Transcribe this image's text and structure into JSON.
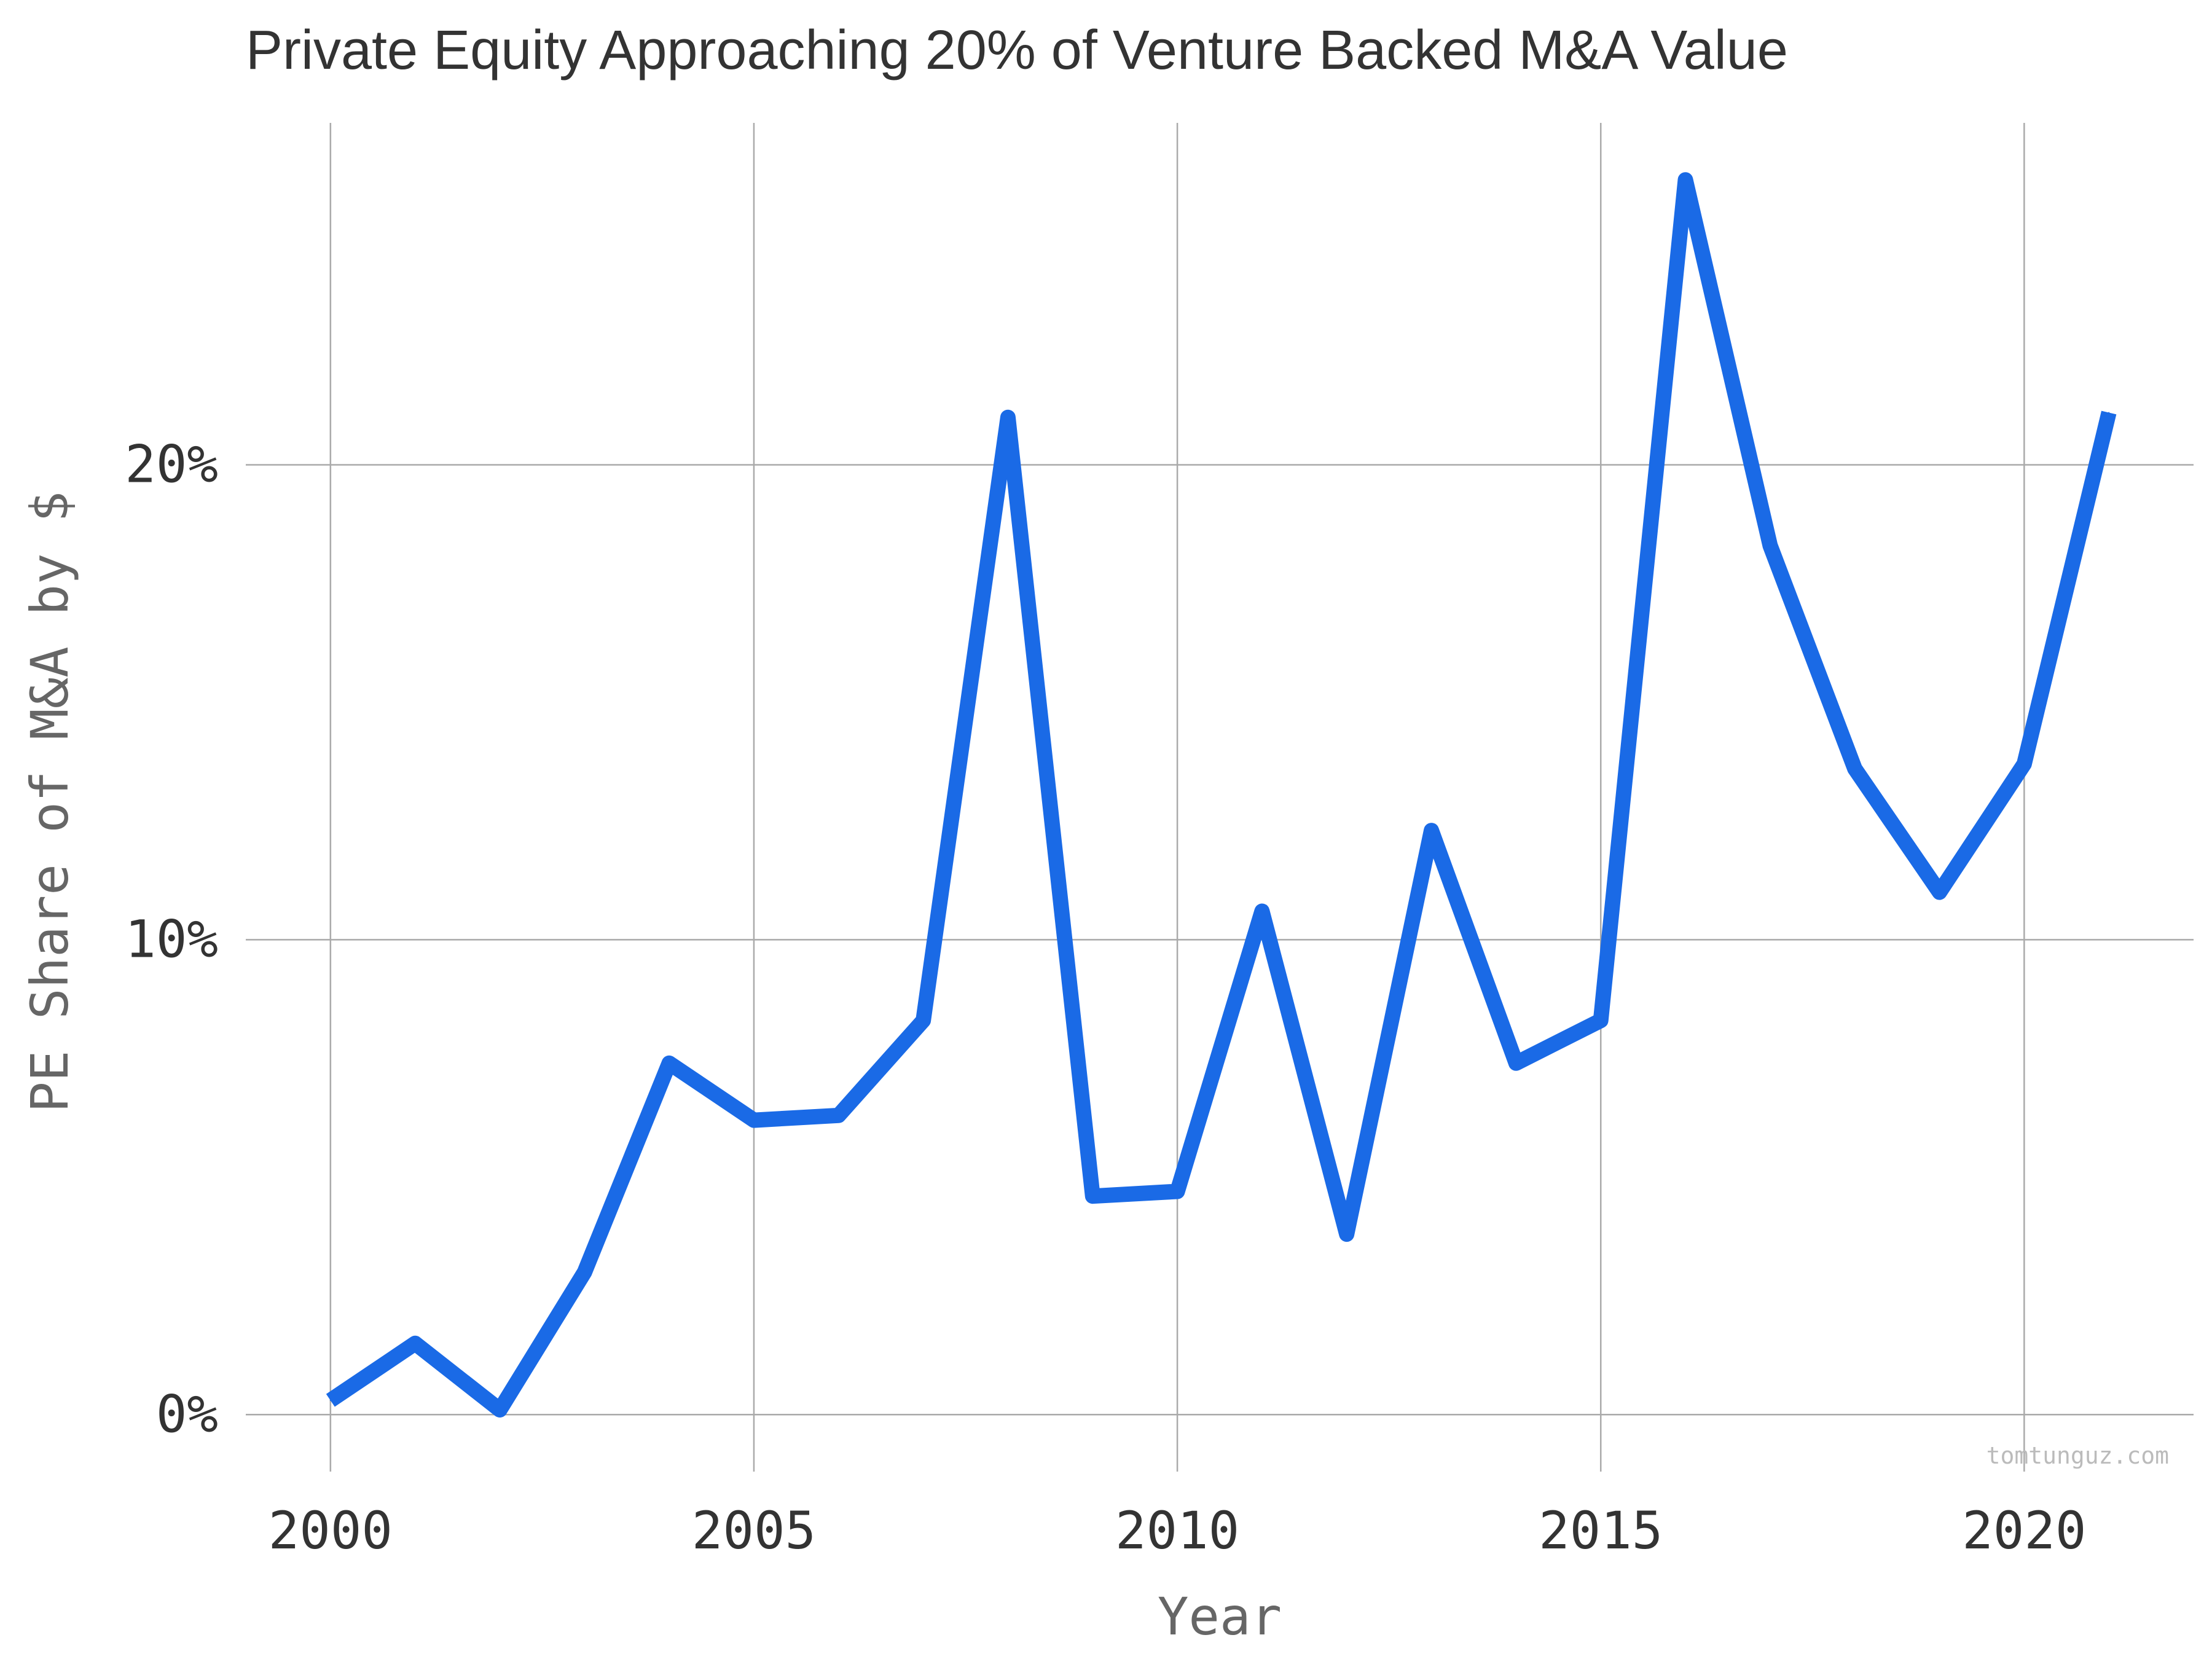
{
  "chart_data": {
    "type": "line",
    "title": "Private Equity Approaching 20% of Venture Backed M&A Value",
    "xlabel": "Year",
    "ylabel": "PE Share of M&A by $",
    "watermark": "tomtunguz.com",
    "grid": true,
    "xlim": [
      1999,
      2022
    ],
    "ylim": [
      -1.2,
      27.2
    ],
    "x_ticks": [
      2000,
      2005,
      2010,
      2015,
      2020
    ],
    "x_tick_labels": [
      "2000",
      "2005",
      "2010",
      "2015",
      "2020"
    ],
    "y_ticks": [
      0,
      10,
      20
    ],
    "y_tick_labels": [
      "0%",
      "10%",
      "20%"
    ],
    "x": [
      2000,
      2001,
      2002,
      2003,
      2004,
      2005,
      2006,
      2007,
      2008,
      2009,
      2010,
      2011,
      2012,
      2013,
      2014,
      2015,
      2016,
      2017,
      2018,
      2019,
      2020,
      2021
    ],
    "series": [
      {
        "color": "#1a6ae6",
        "values": [
          0.3,
          1.5,
          0.1,
          3.0,
          7.4,
          6.2,
          6.3,
          8.3,
          21.0,
          4.6,
          4.7,
          10.6,
          3.8,
          12.3,
          7.4,
          8.3,
          26.0,
          18.3,
          13.6,
          11.0,
          13.7,
          21.1
        ]
      }
    ]
  }
}
